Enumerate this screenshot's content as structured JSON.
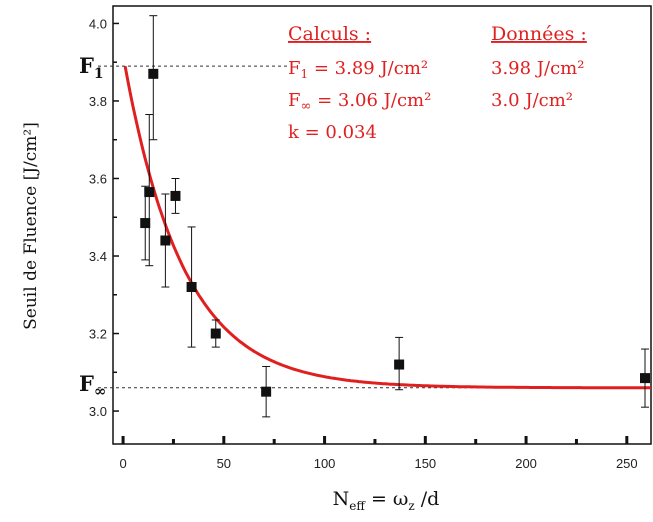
{
  "chart_data": {
    "type": "scatter",
    "title": "",
    "xlabel": "N_eff = ω_z / d",
    "xlabel_parts": {
      "main": "N",
      "sub": "eff",
      "rest_a": " = ω",
      "sub2": "z",
      "rest_b": " /d"
    },
    "ylabel": "Seuil de Fluence [J/cm²]",
    "xlim": [
      -5,
      262
    ],
    "ylim": [
      2.915,
      4.045
    ],
    "x_ticks": [
      0,
      50,
      100,
      150,
      200,
      250
    ],
    "x_tick_labels": [
      "0",
      "50",
      "100",
      "150",
      "200",
      "250"
    ],
    "y_ticks": [
      3.0,
      3.2,
      3.4,
      3.6,
      3.8,
      4.0
    ],
    "y_tick_labels": [
      "3.0",
      "3.2",
      "3.4",
      "3.6",
      "3.8",
      "4.0"
    ],
    "grid": false,
    "series": [
      {
        "kind": "points_with_errorbars",
        "color": "#111111",
        "points": [
          {
            "x": 11,
            "y": 3.485,
            "err_low": 0.095,
            "err_high": 0.095
          },
          {
            "x": 13,
            "y": 3.565,
            "err_low": 0.19,
            "err_high": 0.2
          },
          {
            "x": 15,
            "y": 3.87,
            "err_low": 0.17,
            "err_high": 0.15
          },
          {
            "x": 21,
            "y": 3.44,
            "err_low": 0.12,
            "err_high": 0.12
          },
          {
            "x": 26,
            "y": 3.555,
            "err_low": 0.045,
            "err_high": 0.045
          },
          {
            "x": 34,
            "y": 3.32,
            "err_low": 0.155,
            "err_high": 0.155
          },
          {
            "x": 46,
            "y": 3.2,
            "err_low": 0.035,
            "err_high": 0.035
          },
          {
            "x": 71,
            "y": 3.05,
            "err_low": 0.065,
            "err_high": 0.065
          },
          {
            "x": 137,
            "y": 3.12,
            "err_low": 0.065,
            "err_high": 0.07
          },
          {
            "x": 263,
            "y": 3.085,
            "err_low": 0.075,
            "err_high": 0.075
          }
        ]
      },
      {
        "kind": "fit_curve",
        "color": "#e02020",
        "model": "exponential decay",
        "F1": 3.89,
        "Finf": 3.06,
        "k": 0.034
      }
    ],
    "reference_lines": [
      {
        "y": 3.89,
        "style": "dashed",
        "label": "F",
        "label_sub": "1"
      },
      {
        "y": 3.06,
        "style": "dashed",
        "label": "F",
        "label_sub": "∞"
      }
    ],
    "annotations": {
      "calc_header": "Calculs :",
      "data_header": "Données :",
      "calc_F1": "F",
      "calc_F1_sub": "1",
      "calc_F1_val": " = 3.89 J/cm²",
      "calc_Finf": "F",
      "calc_Finf_sub": "∞",
      "calc_Finf_val": " = 3.06 J/cm²",
      "calc_k": "k = 0.034",
      "data_F1": "3.98 J/cm²",
      "data_Finf": "3.0 J/cm²"
    }
  }
}
